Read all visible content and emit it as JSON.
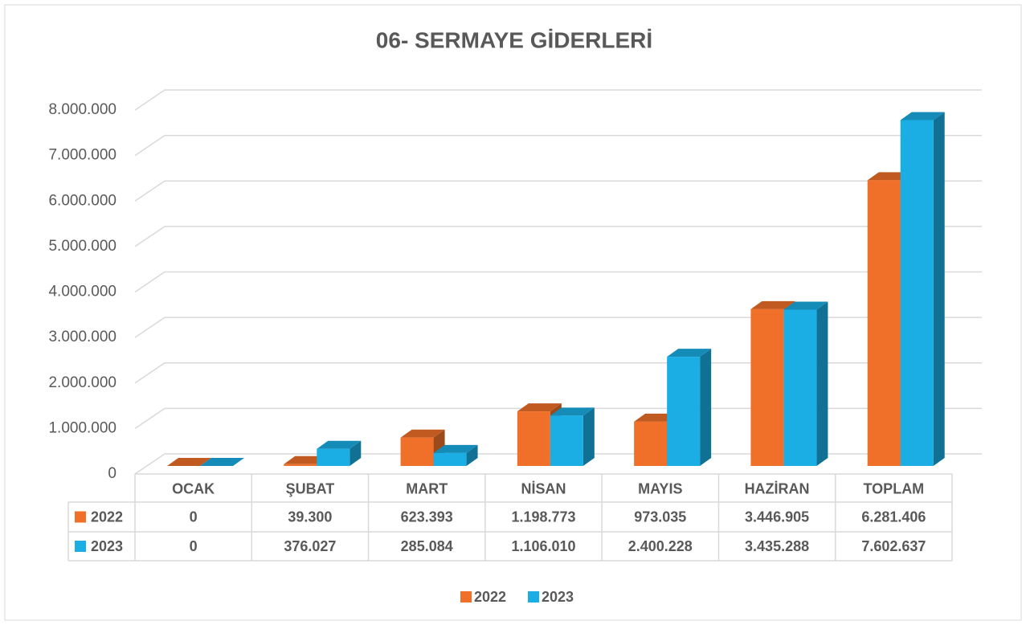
{
  "chart_data": {
    "type": "bar3d",
    "title": "06- SERMAYE GİDERLERİ",
    "categories": [
      "OCAK",
      "ŞUBAT",
      "MART",
      "NİSAN",
      "MAYIS",
      "HAZİRAN",
      "TOPLAM"
    ],
    "series": [
      {
        "name": "2022",
        "color": "#f07029",
        "values": [
          0,
          39300,
          623393,
          1198773,
          973035,
          3446905,
          6281406
        ],
        "value_labels": [
          "0",
          "39.300",
          "623.393",
          "1.198.773",
          "973.035",
          "3.446.905",
          "6.281.406"
        ]
      },
      {
        "name": "2023",
        "color": "#1aaee5",
        "values": [
          0,
          376027,
          285084,
          1106010,
          2400228,
          3435288,
          7602637
        ],
        "value_labels": [
          "0",
          "376.027",
          "285.084",
          "1.106.010",
          "2.400.228",
          "3.435.288",
          "7.602.637"
        ]
      }
    ],
    "ylim": [
      0,
      8000000
    ],
    "yticks": [
      0,
      {
        "value": 1000000,
        "label": "1.000.000"
      },
      {
        "value": 2000000,
        "label": "2.000.000"
      },
      {
        "value": 3000000,
        "label": "3.000.000"
      },
      {
        "value": 4000000,
        "label": "4.000.000"
      },
      {
        "value": 5000000,
        "label": "5.000.000"
      },
      {
        "value": 6000000,
        "label": "6.000.000"
      },
      {
        "value": 7000000,
        "label": "7.000.000"
      },
      {
        "value": 8000000,
        "label": "8.000.000"
      }
    ],
    "grid": true
  }
}
